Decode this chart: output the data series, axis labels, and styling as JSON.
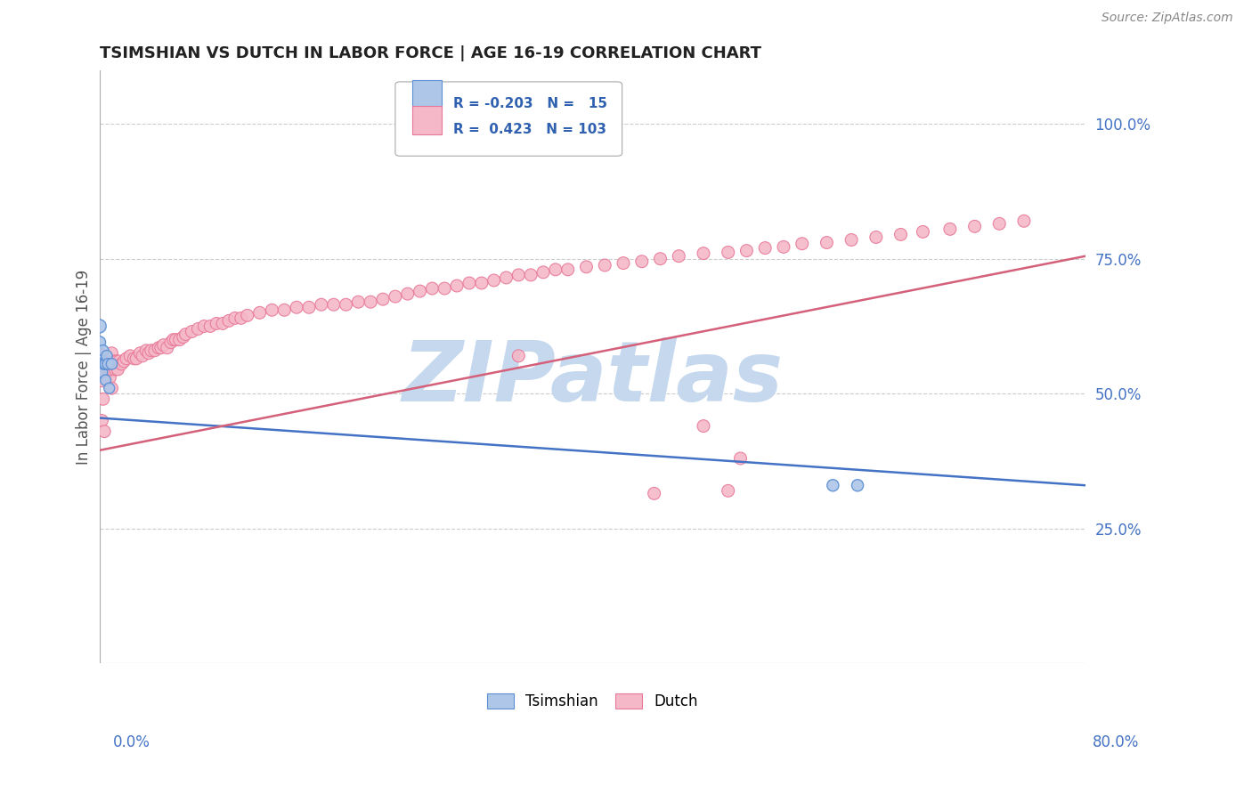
{
  "title": "TSIMSHIAN VS DUTCH IN LABOR FORCE | AGE 16-19 CORRELATION CHART",
  "source": "Source: ZipAtlas.com",
  "ylabel": "In Labor Force | Age 16-19",
  "xmin": 0.0,
  "xmax": 0.8,
  "ymin": 0.0,
  "ymax": 1.1,
  "right_yticks": [
    0.25,
    0.5,
    0.75,
    1.0
  ],
  "right_yticklabels": [
    "25.0%",
    "50.0%",
    "75.0%",
    "100.0%"
  ],
  "tsimshian_color": "#aec6e8",
  "dutch_color": "#f4b8c8",
  "tsimshian_edge_color": "#5b8fd4",
  "dutch_edge_color": "#e87898",
  "tsimshian_line_color": "#4472c4",
  "dutch_line_color": "#d4607a",
  "watermark": "ZIPatlas",
  "watermark_color": "#c5d8ee",
  "tsimshian_x": [
    0.0,
    0.0,
    0.0,
    0.002,
    0.002,
    0.003,
    0.004,
    0.005,
    0.005,
    0.006,
    0.007,
    0.008,
    0.01,
    0.595,
    0.615
  ],
  "tsimshian_y": [
    0.625,
    0.595,
    0.565,
    0.555,
    0.54,
    0.58,
    0.555,
    0.555,
    0.525,
    0.57,
    0.555,
    0.51,
    0.555,
    0.33,
    0.33
  ],
  "tsimshian_sizes": [
    120,
    100,
    80,
    90,
    85,
    80,
    85,
    80,
    75,
    80,
    80,
    75,
    80,
    90,
    90
  ],
  "dutch_x": [
    0.001,
    0.002,
    0.003,
    0.004,
    0.005,
    0.006,
    0.007,
    0.008,
    0.01,
    0.01,
    0.01,
    0.012,
    0.013,
    0.014,
    0.015,
    0.016,
    0.018,
    0.02,
    0.022,
    0.025,
    0.028,
    0.03,
    0.033,
    0.035,
    0.038,
    0.04,
    0.042,
    0.045,
    0.048,
    0.05,
    0.052,
    0.055,
    0.058,
    0.06,
    0.062,
    0.065,
    0.068,
    0.07,
    0.075,
    0.08,
    0.085,
    0.09,
    0.095,
    0.1,
    0.105,
    0.11,
    0.115,
    0.12,
    0.13,
    0.14,
    0.15,
    0.16,
    0.17,
    0.18,
    0.19,
    0.2,
    0.21,
    0.22,
    0.23,
    0.24,
    0.25,
    0.26,
    0.27,
    0.28,
    0.29,
    0.3,
    0.31,
    0.32,
    0.33,
    0.34,
    0.35,
    0.36,
    0.37,
    0.38,
    0.395,
    0.41,
    0.425,
    0.44,
    0.455,
    0.47,
    0.49,
    0.51,
    0.525,
    0.54,
    0.555,
    0.57,
    0.59,
    0.61,
    0.63,
    0.65,
    0.668,
    0.69,
    0.71,
    0.73,
    0.75,
    0.002,
    0.003,
    0.004,
    0.49,
    0.51,
    0.52,
    0.34,
    0.45
  ],
  "dutch_y": [
    0.555,
    0.525,
    0.57,
    0.54,
    0.56,
    0.555,
    0.545,
    0.53,
    0.575,
    0.545,
    0.51,
    0.56,
    0.545,
    0.56,
    0.545,
    0.56,
    0.555,
    0.56,
    0.565,
    0.57,
    0.565,
    0.565,
    0.575,
    0.57,
    0.58,
    0.575,
    0.58,
    0.58,
    0.585,
    0.585,
    0.59,
    0.585,
    0.595,
    0.6,
    0.6,
    0.6,
    0.605,
    0.61,
    0.615,
    0.62,
    0.625,
    0.625,
    0.63,
    0.63,
    0.635,
    0.64,
    0.64,
    0.645,
    0.65,
    0.655,
    0.655,
    0.66,
    0.66,
    0.665,
    0.665,
    0.665,
    0.67,
    0.67,
    0.675,
    0.68,
    0.685,
    0.69,
    0.695,
    0.695,
    0.7,
    0.705,
    0.705,
    0.71,
    0.715,
    0.72,
    0.72,
    0.725,
    0.73,
    0.73,
    0.735,
    0.738,
    0.742,
    0.745,
    0.75,
    0.755,
    0.76,
    0.762,
    0.765,
    0.77,
    0.772,
    0.778,
    0.78,
    0.785,
    0.79,
    0.795,
    0.8,
    0.805,
    0.81,
    0.815,
    0.82,
    0.45,
    0.49,
    0.43,
    0.44,
    0.32,
    0.38,
    0.57,
    0.315
  ],
  "dutch_sizes": [
    400,
    120,
    120,
    120,
    120,
    120,
    120,
    120,
    100,
    100,
    100,
    100,
    100,
    100,
    100,
    100,
    100,
    100,
    100,
    100,
    100,
    100,
    100,
    100,
    100,
    100,
    100,
    100,
    100,
    100,
    100,
    100,
    100,
    100,
    100,
    100,
    100,
    100,
    100,
    100,
    100,
    100,
    100,
    100,
    100,
    100,
    100,
    100,
    100,
    100,
    100,
    100,
    100,
    100,
    100,
    100,
    100,
    100,
    100,
    100,
    100,
    100,
    100,
    100,
    100,
    100,
    100,
    100,
    100,
    100,
    100,
    100,
    100,
    100,
    100,
    100,
    100,
    100,
    100,
    100,
    100,
    100,
    100,
    100,
    100,
    100,
    100,
    100,
    100,
    100,
    100,
    100,
    100,
    100,
    100,
    100,
    100,
    100,
    100,
    100,
    100,
    100,
    100
  ],
  "tsim_line_x0": 0.0,
  "tsim_line_x1": 0.8,
  "tsim_line_y0": 0.455,
  "tsim_line_y1": 0.33,
  "dutch_line_x0": 0.0,
  "dutch_line_x1": 0.8,
  "dutch_line_y0": 0.395,
  "dutch_line_y1": 0.755
}
